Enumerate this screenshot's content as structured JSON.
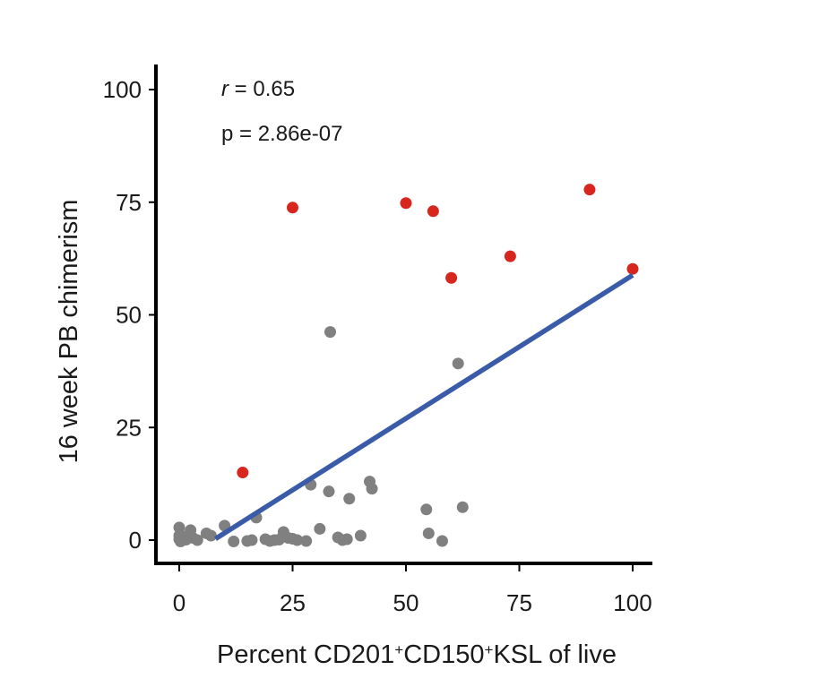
{
  "chart_data": {
    "type": "scatter",
    "title": "",
    "xlabel_parts": [
      "Percent CD201",
      "+",
      "CD150",
      "+",
      "KSL of live"
    ],
    "ylabel": "16 week PB chimerism",
    "xlim": [
      -5,
      105
    ],
    "ylim": [
      -5,
      105
    ],
    "xticks": [
      0,
      25,
      50,
      75,
      100
    ],
    "yticks": [
      0,
      25,
      50,
      75,
      100
    ],
    "annotations": {
      "r_symbol": "r",
      "r_value": " = 0.65",
      "p_text": "p = 2.86e-07"
    },
    "colors": {
      "gray_points": "#808080",
      "red_points": "#d7261e",
      "fit_line": "#3a5ca8",
      "axis": "#000000"
    },
    "series": [
      {
        "name": "gray",
        "points": [
          [
            0,
            2.8
          ],
          [
            0,
            1.0
          ],
          [
            0,
            0.2
          ],
          [
            0.3,
            -0.3
          ],
          [
            1.0,
            0.8
          ],
          [
            1.5,
            0.1
          ],
          [
            2.5,
            2.2
          ],
          [
            3.0,
            0.5
          ],
          [
            4.0,
            0.0
          ],
          [
            6.0,
            1.5
          ],
          [
            7.0,
            1.0
          ],
          [
            10.0,
            3.2
          ],
          [
            12.0,
            -0.3
          ],
          [
            15.0,
            -0.2
          ],
          [
            16.0,
            0.0
          ],
          [
            17.0,
            5.0
          ],
          [
            19.0,
            0.2
          ],
          [
            20.0,
            -0.2
          ],
          [
            21.0,
            0.0
          ],
          [
            22.0,
            0.1
          ],
          [
            23.0,
            1.8
          ],
          [
            24.0,
            0.5
          ],
          [
            25.0,
            0.3
          ],
          [
            26.0,
            0.0
          ],
          [
            28.0,
            -0.2
          ],
          [
            29.0,
            12.3
          ],
          [
            31.0,
            2.5
          ],
          [
            33.0,
            10.8
          ],
          [
            33.3,
            46.2
          ],
          [
            35.0,
            0.6
          ],
          [
            36.0,
            0.0
          ],
          [
            37.0,
            0.2
          ],
          [
            37.5,
            9.2
          ],
          [
            40.0,
            1.0
          ],
          [
            42.0,
            13.0
          ],
          [
            42.5,
            11.4
          ],
          [
            54.5,
            6.8
          ],
          [
            55.0,
            1.5
          ],
          [
            58.0,
            -0.2
          ],
          [
            61.5,
            39.2
          ],
          [
            62.5,
            7.3
          ]
        ]
      },
      {
        "name": "red",
        "points": [
          [
            14.0,
            15.0
          ],
          [
            25.0,
            73.8
          ],
          [
            50.0,
            74.8
          ],
          [
            56.0,
            73.0
          ],
          [
            60.0,
            58.2
          ],
          [
            73.0,
            63.0
          ],
          [
            90.5,
            77.8
          ],
          [
            100.0,
            60.2
          ]
        ]
      }
    ],
    "fit_line": {
      "x": [
        8,
        100
      ],
      "y": [
        0.3,
        58.8
      ]
    }
  }
}
